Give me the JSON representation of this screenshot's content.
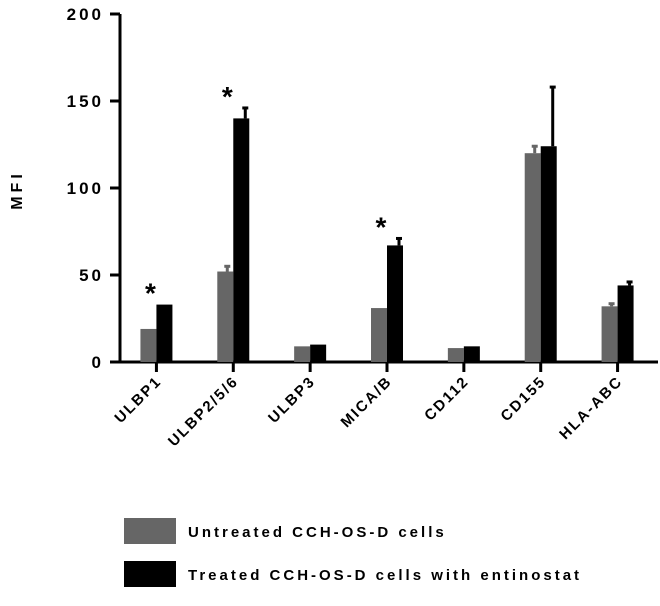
{
  "chart_data": {
    "type": "bar",
    "title": "",
    "xlabel": "",
    "ylabel": "MFI",
    "ylim": [
      0,
      200
    ],
    "yticks": [
      0,
      50,
      100,
      150,
      200
    ],
    "grid": false,
    "legend_position": "bottom",
    "categories": [
      "ULBP1",
      "ULBP2/5/6",
      "ULBP3",
      "MICA/B",
      "CD112",
      "CD155",
      "HLA-ABC"
    ],
    "series": [
      {
        "name": "Untreated CCH-OS-D cells",
        "color": "#666666",
        "values": [
          19,
          52,
          9,
          31,
          8,
          120,
          32
        ],
        "errors": [
          0,
          3,
          0,
          0,
          0,
          4,
          1.5
        ]
      },
      {
        "name": "Treated CCH-OS-D cells with entinostat",
        "color": "#000000",
        "values": [
          33,
          140,
          10,
          67,
          9,
          124,
          44
        ],
        "errors": [
          0,
          6,
          0,
          4,
          0,
          34,
          2
        ]
      }
    ],
    "significance": [
      "*",
      "*",
      "",
      "*",
      "",
      "",
      ""
    ]
  }
}
